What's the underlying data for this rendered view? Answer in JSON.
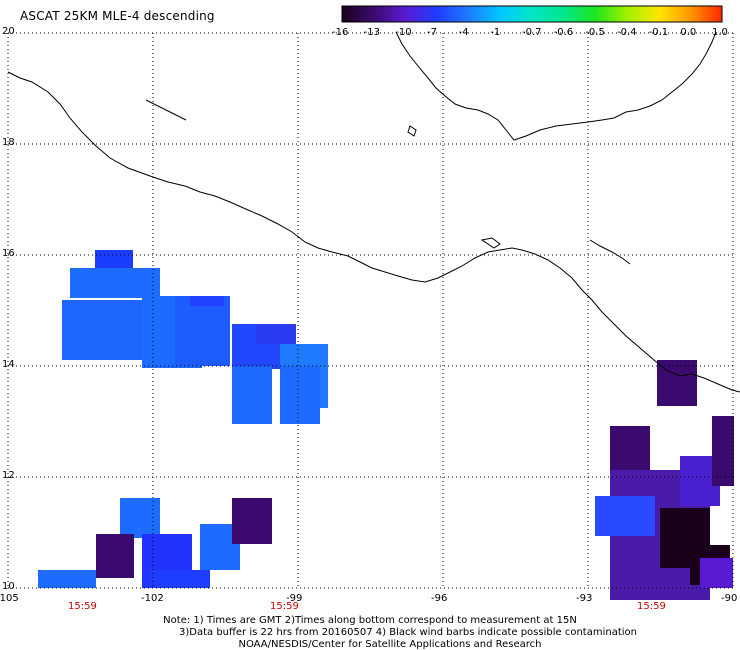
{
  "title": "ASCAT 25KM MLE-4 descending",
  "map": {
    "lon_range": [
      -105,
      -90
    ],
    "lat_range": [
      10,
      20
    ],
    "lon_ticks": [
      "-105",
      "-102",
      "-99",
      "-96",
      "-93",
      "-90"
    ],
    "lat_ticks": [
      "20",
      "18",
      "16",
      "14",
      "12",
      "10"
    ],
    "time_labels": [
      "15:59",
      "15:59",
      "15:59"
    ],
    "grid": "dotted"
  },
  "colorbar": {
    "tick_labels": [
      "-16",
      "-13",
      "-10",
      "-7",
      "-4",
      "-1",
      "-0.7",
      "-0.6",
      "-0.5",
      "-0.4",
      "-0.1",
      "0.0",
      "1.0"
    ],
    "colors": [
      "#1a001a",
      "#3b0a6e",
      "#5a1ad1",
      "#1f3dff",
      "#1e7bff",
      "#00c8ff",
      "#00e6c8",
      "#00e68c",
      "#1ee61e",
      "#a0f000",
      "#ffe600",
      "#ff9600",
      "#ff2800"
    ]
  },
  "notes": {
    "line1": "Note: 1) Times are GMT 2)Times along bottom correspond to measurement at 15N",
    "line2": "3)Data buffer is 22 hrs from 20160507 4) Black wind barbs indicate possible contamination",
    "line3": "NOAA/NESDIS/Center for Satellite Applications and Research"
  }
}
